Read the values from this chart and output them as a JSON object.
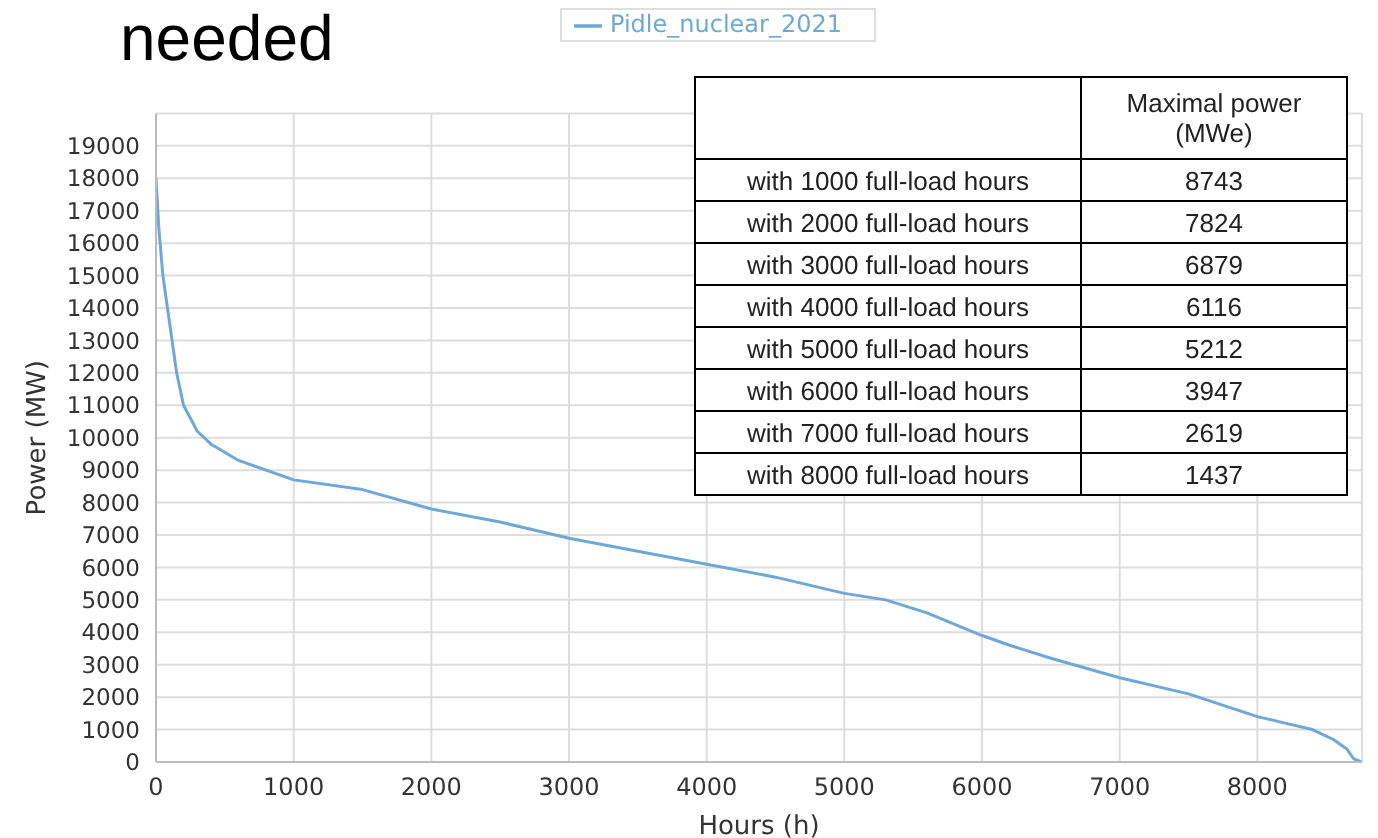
{
  "chart_data": {
    "type": "line",
    "title": "needed",
    "xlabel": "Hours (h)",
    "ylabel": "Power (MW)",
    "x": [
      0,
      20,
      50,
      100,
      150,
      200,
      300,
      400,
      600,
      1000,
      1500,
      2000,
      2500,
      3000,
      3500,
      4000,
      4500,
      5000,
      5300,
      5600,
      6000,
      6200,
      6500,
      7000,
      7500,
      8000,
      8200,
      8400,
      8550,
      8650,
      8700,
      8760
    ],
    "series": [
      {
        "name": "Pidle_nuclear_2021",
        "color": "#6fa8d6",
        "values": [
          18000,
          16500,
          15000,
          13500,
          12000,
          11000,
          10200,
          9800,
          9300,
          8700,
          8400,
          7800,
          7400,
          6900,
          6500,
          6100,
          5700,
          5200,
          5000,
          4600,
          3900,
          3600,
          3200,
          2600,
          2100,
          1400,
          1200,
          1000,
          700,
          400,
          100,
          0
        ]
      }
    ],
    "xlim": [
      0,
      8760
    ],
    "xticks": [
      0,
      1000,
      2000,
      3000,
      4000,
      5000,
      6000,
      7000,
      8000
    ],
    "ylim": [
      0,
      20000
    ],
    "yticks": [
      0,
      1000,
      2000,
      3000,
      4000,
      5000,
      6000,
      7000,
      8000,
      9000,
      10000,
      11000,
      12000,
      13000,
      14000,
      15000,
      16000,
      17000,
      18000,
      19000
    ],
    "grid": true,
    "legend": "top",
    "annotations": [
      "Maximal power (MWe)",
      "with 1000 full-load hours",
      "8743",
      "with 2000 full-load hours",
      "7824",
      "with 3000 full-load hours",
      "6879",
      "with 4000 full-load hours",
      "6116",
      "with 5000 full-load hours",
      "5212",
      "with 6000 full-load hours",
      "3947",
      "with 7000 full-load hours",
      "2619",
      "with 8000 full-load hours",
      "1437"
    ]
  }
}
